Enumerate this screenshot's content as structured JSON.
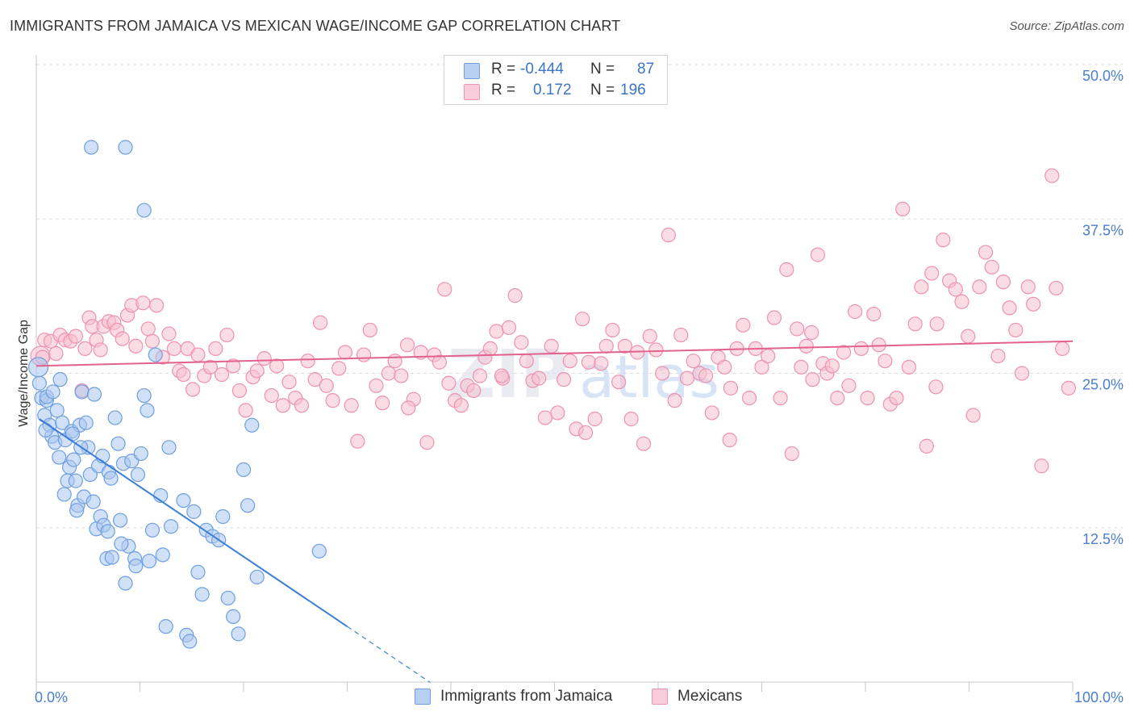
{
  "header": {
    "title": "IMMIGRANTS FROM JAMAICA VS MEXICAN WAGE/INCOME GAP CORRELATION CHART",
    "source": "Source: ZipAtlas.com"
  },
  "legend": {
    "rows": [
      {
        "r_label": "R =",
        "r_value": "-0.444",
        "n_label": "N =",
        "n_value": "87"
      },
      {
        "r_label": "R =",
        "r_value": "0.172",
        "n_label": "N =",
        "n_value": "196"
      }
    ]
  },
  "watermark": {
    "zip": "ZIP",
    "atlas": "atlas"
  },
  "colors": {
    "blue": "#3d7fd6",
    "blue_fill": "#a9c6ef",
    "blue_stroke": "#6f9fe0",
    "pink": "#e2628e",
    "pink_fill": "#f6bfd0",
    "pink_stroke": "#ee92b0",
    "tick_label": "#4a7fd0",
    "grid": "#d9dde3"
  },
  "chart_data": {
    "type": "scatter",
    "title": "IMMIGRANTS FROM JAMAICA VS MEXICAN WAGE/INCOME GAP CORRELATION CHART",
    "xlabel": "",
    "ylabel": "Wage/Income Gap",
    "xlim": [
      0,
      100
    ],
    "ylim": [
      0,
      50
    ],
    "x_tick_labels": [
      "0.0%",
      "100.0%"
    ],
    "y_ticks": [
      12.5,
      25.0,
      37.5,
      50.0
    ],
    "y_tick_labels": [
      "12.5%",
      "25.0%",
      "37.5%",
      "50.0%"
    ],
    "grid": true,
    "legend_placement": "top-center",
    "series": [
      {
        "name": "Immigrants from Jamaica",
        "color": "#3d7fd6",
        "trend": {
          "x0": 0.3,
          "y0": 21.3,
          "x1": 30.0,
          "y1": 4.5,
          "dashed_to_x": 38.0
        },
        "points": [
          [
            0.2,
            25.5
          ],
          [
            0.3,
            24.2
          ],
          [
            0.5,
            23.0
          ],
          [
            0.8,
            21.6
          ],
          [
            1.0,
            22.8
          ],
          [
            1.3,
            20.8
          ],
          [
            1.5,
            19.9
          ],
          [
            1.8,
            19.4
          ],
          [
            2.0,
            22.0
          ],
          [
            2.2,
            18.2
          ],
          [
            2.5,
            21.0
          ],
          [
            2.8,
            19.6
          ],
          [
            3.0,
            16.3
          ],
          [
            3.2,
            17.4
          ],
          [
            3.4,
            20.3
          ],
          [
            3.6,
            18.0
          ],
          [
            3.8,
            16.3
          ],
          [
            4.0,
            14.3
          ],
          [
            4.2,
            20.8
          ],
          [
            4.4,
            23.5
          ],
          [
            4.6,
            15.0
          ],
          [
            4.8,
            21.0
          ],
          [
            5.0,
            19.0
          ],
          [
            5.2,
            16.8
          ],
          [
            5.6,
            23.3
          ],
          [
            5.8,
            12.4
          ],
          [
            6.0,
            17.5
          ],
          [
            6.2,
            13.4
          ],
          [
            6.5,
            12.7
          ],
          [
            6.8,
            10.0
          ],
          [
            7.0,
            17.0
          ],
          [
            7.3,
            10.1
          ],
          [
            7.6,
            21.4
          ],
          [
            7.9,
            19.3
          ],
          [
            8.1,
            13.1
          ],
          [
            8.4,
            17.7
          ],
          [
            8.6,
            8.0
          ],
          [
            8.9,
            11.0
          ],
          [
            9.2,
            17.9
          ],
          [
            9.5,
            10.0
          ],
          [
            9.8,
            16.8
          ],
          [
            10.1,
            18.5
          ],
          [
            10.4,
            23.2
          ],
          [
            10.7,
            22.0
          ],
          [
            10.9,
            9.8
          ],
          [
            11.2,
            12.3
          ],
          [
            11.5,
            26.5
          ],
          [
            12.0,
            15.1
          ],
          [
            12.5,
            4.5
          ],
          [
            12.8,
            19.0
          ],
          [
            13.0,
            12.6
          ],
          [
            14.2,
            14.7
          ],
          [
            14.5,
            3.8
          ],
          [
            14.8,
            3.3
          ],
          [
            15.2,
            13.8
          ],
          [
            15.6,
            8.9
          ],
          [
            16.0,
            7.1
          ],
          [
            16.4,
            12.3
          ],
          [
            17.0,
            11.8
          ],
          [
            17.6,
            11.5
          ],
          [
            18.0,
            13.4
          ],
          [
            18.5,
            6.8
          ],
          [
            19.0,
            5.3
          ],
          [
            19.5,
            3.9
          ],
          [
            20.0,
            17.2
          ],
          [
            20.4,
            14.3
          ],
          [
            20.8,
            20.8
          ],
          [
            21.3,
            8.5
          ],
          [
            27.3,
            10.6
          ],
          [
            5.3,
            43.3
          ],
          [
            8.6,
            43.3
          ],
          [
            10.4,
            38.2
          ],
          [
            1.0,
            23.1
          ],
          [
            1.6,
            23.5
          ],
          [
            2.3,
            24.5
          ],
          [
            3.5,
            20.1
          ],
          [
            4.3,
            19.0
          ],
          [
            6.4,
            18.3
          ],
          [
            7.2,
            16.5
          ],
          [
            0.9,
            20.4
          ],
          [
            2.7,
            15.2
          ],
          [
            3.9,
            13.9
          ],
          [
            5.5,
            14.6
          ],
          [
            6.9,
            12.2
          ],
          [
            8.2,
            11.2
          ],
          [
            9.6,
            9.4
          ],
          [
            12.2,
            10.3
          ]
        ]
      },
      {
        "name": "Mexicans",
        "color": "#e2628e",
        "trend": {
          "x0": 0.0,
          "y0": 25.6,
          "x1": 100.0,
          "y1": 27.6
        },
        "points": [
          [
            0.4,
            26.4
          ],
          [
            0.6,
            26.3
          ],
          [
            0.8,
            27.7
          ],
          [
            1.4,
            27.6
          ],
          [
            1.9,
            26.6
          ],
          [
            2.3,
            28.1
          ],
          [
            2.8,
            27.7
          ],
          [
            3.3,
            27.6
          ],
          [
            3.8,
            28.0
          ],
          [
            4.4,
            23.6
          ],
          [
            4.7,
            27.0
          ],
          [
            5.1,
            29.5
          ],
          [
            5.4,
            28.8
          ],
          [
            5.8,
            27.7
          ],
          [
            6.2,
            26.9
          ],
          [
            6.5,
            28.8
          ],
          [
            7.0,
            29.2
          ],
          [
            7.5,
            29.1
          ],
          [
            7.8,
            28.5
          ],
          [
            8.3,
            27.8
          ],
          [
            8.8,
            29.7
          ],
          [
            9.2,
            30.5
          ],
          [
            9.6,
            27.2
          ],
          [
            10.3,
            30.7
          ],
          [
            10.8,
            28.6
          ],
          [
            11.2,
            27.6
          ],
          [
            11.6,
            30.5
          ],
          [
            12.2,
            26.3
          ],
          [
            12.8,
            28.2
          ],
          [
            13.3,
            27.0
          ],
          [
            13.8,
            25.2
          ],
          [
            14.2,
            24.9
          ],
          [
            14.6,
            27.0
          ],
          [
            15.1,
            23.7
          ],
          [
            15.6,
            26.5
          ],
          [
            16.2,
            24.8
          ],
          [
            16.8,
            25.5
          ],
          [
            17.3,
            27.0
          ],
          [
            17.9,
            24.9
          ],
          [
            18.4,
            28.1
          ],
          [
            19.0,
            25.6
          ],
          [
            19.6,
            23.6
          ],
          [
            20.2,
            22.0
          ],
          [
            20.9,
            24.7
          ],
          [
            21.3,
            25.2
          ],
          [
            22.0,
            26.2
          ],
          [
            22.7,
            23.2
          ],
          [
            23.2,
            25.6
          ],
          [
            23.8,
            22.4
          ],
          [
            24.4,
            24.3
          ],
          [
            25.0,
            23.0
          ],
          [
            25.6,
            22.4
          ],
          [
            26.2,
            26.0
          ],
          [
            26.9,
            24.5
          ],
          [
            27.4,
            29.1
          ],
          [
            28.0,
            24.0
          ],
          [
            28.6,
            22.8
          ],
          [
            29.2,
            25.4
          ],
          [
            29.8,
            26.7
          ],
          [
            30.4,
            22.4
          ],
          [
            31.0,
            19.5
          ],
          [
            31.6,
            26.5
          ],
          [
            32.2,
            28.5
          ],
          [
            32.8,
            24.0
          ],
          [
            33.4,
            22.6
          ],
          [
            34.0,
            25.0
          ],
          [
            34.6,
            26.0
          ],
          [
            35.2,
            24.8
          ],
          [
            35.8,
            27.3
          ],
          [
            36.4,
            22.9
          ],
          [
            37.1,
            26.7
          ],
          [
            37.7,
            19.4
          ],
          [
            38.4,
            26.5
          ],
          [
            38.9,
            25.9
          ],
          [
            39.4,
            31.8
          ],
          [
            39.8,
            24.2
          ],
          [
            40.4,
            22.8
          ],
          [
            41.0,
            22.4
          ],
          [
            41.6,
            24.0
          ],
          [
            42.2,
            23.6
          ],
          [
            42.8,
            24.8
          ],
          [
            43.3,
            26.3
          ],
          [
            43.8,
            27.0
          ],
          [
            44.4,
            28.4
          ],
          [
            45.0,
            24.6
          ],
          [
            45.6,
            28.7
          ],
          [
            46.2,
            31.3
          ],
          [
            46.8,
            27.5
          ],
          [
            47.3,
            26.0
          ],
          [
            47.9,
            24.4
          ],
          [
            48.5,
            24.6
          ],
          [
            49.1,
            21.4
          ],
          [
            49.7,
            27.2
          ],
          [
            50.3,
            21.8
          ],
          [
            50.9,
            24.5
          ],
          [
            51.5,
            26.0
          ],
          [
            52.1,
            20.5
          ],
          [
            52.7,
            29.4
          ],
          [
            53.3,
            25.9
          ],
          [
            53.9,
            21.3
          ],
          [
            54.5,
            25.8
          ],
          [
            55.0,
            27.2
          ],
          [
            55.6,
            28.5
          ],
          [
            56.2,
            24.3
          ],
          [
            56.8,
            27.2
          ],
          [
            57.4,
            21.3
          ],
          [
            58.0,
            26.7
          ],
          [
            58.6,
            19.3
          ],
          [
            59.2,
            28.0
          ],
          [
            59.8,
            26.9
          ],
          [
            60.4,
            25.0
          ],
          [
            61.0,
            36.2
          ],
          [
            61.6,
            22.8
          ],
          [
            62.2,
            28.1
          ],
          [
            62.8,
            24.6
          ],
          [
            63.4,
            26.0
          ],
          [
            64.0,
            25.0
          ],
          [
            64.6,
            24.8
          ],
          [
            65.2,
            21.8
          ],
          [
            65.8,
            26.3
          ],
          [
            66.4,
            25.5
          ],
          [
            67.0,
            23.8
          ],
          [
            67.6,
            27.0
          ],
          [
            68.2,
            28.9
          ],
          [
            68.8,
            23.0
          ],
          [
            69.4,
            27.0
          ],
          [
            70.0,
            25.5
          ],
          [
            70.6,
            26.4
          ],
          [
            71.2,
            29.5
          ],
          [
            71.8,
            23.0
          ],
          [
            72.4,
            33.4
          ],
          [
            72.9,
            18.5
          ],
          [
            73.4,
            28.6
          ],
          [
            73.8,
            25.5
          ],
          [
            74.3,
            27.2
          ],
          [
            74.8,
            28.3
          ],
          [
            75.4,
            34.6
          ],
          [
            75.9,
            25.8
          ],
          [
            76.3,
            25.0
          ],
          [
            76.8,
            25.6
          ],
          [
            77.3,
            23.0
          ],
          [
            77.9,
            26.7
          ],
          [
            78.4,
            24.0
          ],
          [
            79.0,
            30.0
          ],
          [
            79.6,
            27.0
          ],
          [
            80.2,
            23.0
          ],
          [
            80.8,
            29.8
          ],
          [
            81.3,
            27.3
          ],
          [
            81.9,
            26.0
          ],
          [
            82.4,
            22.5
          ],
          [
            83.0,
            23.0
          ],
          [
            83.6,
            38.3
          ],
          [
            84.2,
            25.5
          ],
          [
            84.8,
            29.0
          ],
          [
            85.4,
            32.0
          ],
          [
            85.9,
            19.1
          ],
          [
            86.4,
            33.1
          ],
          [
            86.9,
            29.0
          ],
          [
            87.5,
            35.8
          ],
          [
            88.1,
            32.5
          ],
          [
            88.7,
            31.8
          ],
          [
            89.3,
            30.8
          ],
          [
            89.9,
            28.0
          ],
          [
            90.4,
            21.6
          ],
          [
            91.0,
            32.0
          ],
          [
            91.6,
            34.8
          ],
          [
            92.2,
            33.6
          ],
          [
            92.8,
            26.4
          ],
          [
            93.3,
            32.4
          ],
          [
            93.9,
            30.3
          ],
          [
            94.5,
            28.5
          ],
          [
            95.1,
            25.0
          ],
          [
            95.7,
            32.0
          ],
          [
            96.2,
            30.6
          ],
          [
            97.0,
            17.5
          ],
          [
            98.0,
            41.0
          ],
          [
            98.4,
            31.9
          ],
          [
            99.0,
            27.0
          ],
          [
            99.6,
            23.8
          ],
          [
            35.9,
            22.2
          ],
          [
            44.9,
            24.8
          ],
          [
            53.0,
            20.2
          ],
          [
            66.9,
            19.6
          ],
          [
            74.9,
            24.5
          ],
          [
            86.8,
            23.9
          ]
        ]
      }
    ]
  },
  "bottom_legend": {
    "items": [
      {
        "label": "Immigrants from Jamaica"
      },
      {
        "label": "Mexicans"
      }
    ]
  }
}
